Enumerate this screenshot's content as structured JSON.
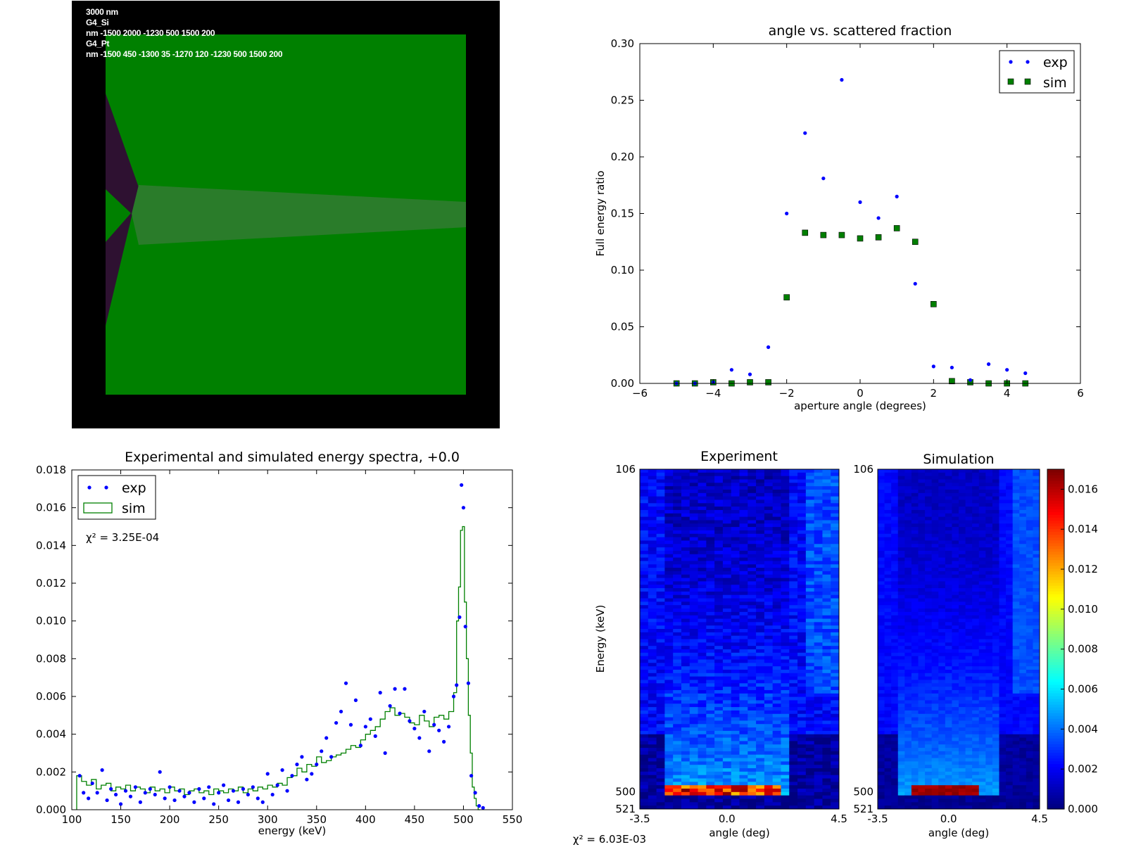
{
  "geometry_panel": {
    "lines": [
      "3000 nm",
      "G4_Si",
      "nm -1500 2000 -1230 500 1500 200",
      "G4_Pt",
      "nm -1500 450 -1300 35 -1270 120 -1230 500 1500 200"
    ],
    "colors": {
      "background": "#000000",
      "silicon": "#008000",
      "platinum": "#2e1131",
      "beam": "#2a7c2a"
    }
  },
  "chart_data": [
    {
      "type": "scatter",
      "title": "angle vs. scattered fraction",
      "xlabel": "aperture angle (degrees)",
      "ylabel": "Full energy ratio",
      "xlim": [
        -6,
        6
      ],
      "ylim": [
        0,
        0.3
      ],
      "xticks": [
        "−6",
        "−4",
        "−2",
        "0",
        "2",
        "4",
        "6"
      ],
      "yticks": [
        "0.00",
        "0.05",
        "0.10",
        "0.15",
        "0.20",
        "0.25",
        "0.30"
      ],
      "legend": "top-right",
      "series": [
        {
          "name": "exp",
          "marker": "dot",
          "color": "#0000ff",
          "x": [
            -5.0,
            -4.5,
            -4.0,
            -3.5,
            -3.0,
            -2.5,
            -2.0,
            -1.5,
            -1.0,
            -0.5,
            0.0,
            0.5,
            1.0,
            1.5,
            2.0,
            2.5,
            3.0,
            3.5,
            4.0,
            4.5
          ],
          "y": [
            0.0,
            0.0,
            0.001,
            0.012,
            0.008,
            0.032,
            0.15,
            0.221,
            0.181,
            0.268,
            0.16,
            0.146,
            0.165,
            0.088,
            0.015,
            0.014,
            0.003,
            0.017,
            0.012,
            0.009
          ]
        },
        {
          "name": "sim",
          "marker": "square",
          "color": "#007f00",
          "x": [
            -5.0,
            -4.5,
            -4.0,
            -3.5,
            -3.0,
            -2.5,
            -2.0,
            -1.5,
            -1.0,
            -0.5,
            0.0,
            0.5,
            1.0,
            1.5,
            2.0,
            2.5,
            3.0,
            3.5,
            4.0,
            4.5
          ],
          "y": [
            0.0,
            0.0,
            0.001,
            0.0,
            0.001,
            0.001,
            0.076,
            0.133,
            0.131,
            0.131,
            0.128,
            0.129,
            0.137,
            0.125,
            0.07,
            0.002,
            0.001,
            0.0,
            0.0,
            0.0
          ]
        }
      ]
    },
    {
      "type": "scatter",
      "title": "Experimental and simulated energy spectra, +0.0",
      "xlabel": "energy (keV)",
      "ylabel": "",
      "xlim": [
        100,
        550
      ],
      "ylim": [
        0,
        0.018
      ],
      "xticks": [
        "100",
        "150",
        "200",
        "250",
        "300",
        "350",
        "400",
        "450",
        "500",
        "550"
      ],
      "yticks": [
        "0.000",
        "0.002",
        "0.004",
        "0.006",
        "0.008",
        "0.010",
        "0.012",
        "0.014",
        "0.016",
        "0.018"
      ],
      "legend": "top-left",
      "annotation": "χ² = 3.25E-04",
      "series": [
        {
          "name": "exp",
          "marker": "dot",
          "color": "#0000ff",
          "x": [
            108,
            112,
            117,
            121,
            126,
            131,
            136,
            140,
            145,
            150,
            155,
            160,
            165,
            170,
            175,
            180,
            185,
            190,
            195,
            200,
            205,
            210,
            215,
            220,
            225,
            230,
            235,
            240,
            245,
            250,
            255,
            260,
            265,
            270,
            275,
            280,
            285,
            290,
            295,
            300,
            305,
            310,
            315,
            320,
            325,
            330,
            335,
            340,
            345,
            350,
            355,
            360,
            365,
            370,
            375,
            380,
            385,
            390,
            395,
            400,
            405,
            410,
            415,
            420,
            425,
            430,
            435,
            440,
            445,
            450,
            455,
            460,
            465,
            470,
            475,
            480,
            485,
            490,
            493,
            496,
            498,
            500,
            502,
            505,
            508,
            512,
            516,
            520
          ],
          "y": [
            0.0018,
            0.0009,
            0.0006,
            0.0014,
            0.0009,
            0.0021,
            0.0005,
            0.0011,
            0.0008,
            0.0003,
            0.001,
            0.0007,
            0.0012,
            0.0004,
            0.0009,
            0.0011,
            0.0008,
            0.002,
            0.0006,
            0.0012,
            0.0005,
            0.001,
            0.0007,
            0.0009,
            0.0004,
            0.0011,
            0.0006,
            0.0012,
            0.0003,
            0.0009,
            0.0013,
            0.0005,
            0.001,
            0.0004,
            0.0011,
            0.0008,
            0.0012,
            0.0006,
            0.0004,
            0.0019,
            0.0008,
            0.0013,
            0.0021,
            0.001,
            0.0018,
            0.0024,
            0.0028,
            0.0016,
            0.0019,
            0.0024,
            0.0031,
            0.0038,
            0.0028,
            0.0046,
            0.0052,
            0.0067,
            0.0045,
            0.0058,
            0.0034,
            0.0044,
            0.0048,
            0.0039,
            0.0062,
            0.003,
            0.0055,
            0.0064,
            0.0051,
            0.0064,
            0.0047,
            0.0043,
            0.0038,
            0.0052,
            0.0031,
            0.0045,
            0.0042,
            0.0036,
            0.0044,
            0.006,
            0.0066,
            0.0102,
            0.0172,
            0.016,
            0.0097,
            0.0067,
            0.0018,
            0.0009,
            0.0002,
            0.0001
          ]
        },
        {
          "name": "sim",
          "marker": "step",
          "color": "#008000",
          "x": [
            105,
            110,
            115,
            120,
            125,
            130,
            135,
            140,
            145,
            150,
            155,
            160,
            165,
            170,
            175,
            180,
            185,
            190,
            195,
            200,
            205,
            210,
            215,
            220,
            225,
            230,
            235,
            240,
            245,
            250,
            255,
            260,
            265,
            270,
            275,
            280,
            285,
            290,
            295,
            300,
            305,
            310,
            315,
            320,
            325,
            330,
            335,
            340,
            345,
            350,
            355,
            360,
            365,
            370,
            375,
            380,
            385,
            390,
            395,
            400,
            405,
            410,
            415,
            420,
            425,
            430,
            435,
            440,
            445,
            450,
            455,
            460,
            465,
            470,
            475,
            480,
            485,
            490,
            493,
            495,
            497,
            499,
            501,
            503,
            505,
            507,
            509,
            511,
            513,
            515
          ],
          "y": [
            0.0018,
            0.0015,
            0.0013,
            0.0016,
            0.0011,
            0.0013,
            0.0014,
            0.001,
            0.0012,
            0.0011,
            0.0013,
            0.001,
            0.0012,
            0.0011,
            0.0009,
            0.0012,
            0.001,
            0.0011,
            0.0009,
            0.0012,
            0.001,
            0.0011,
            0.0008,
            0.001,
            0.0011,
            0.0009,
            0.001,
            0.0008,
            0.0011,
            0.001,
            0.0009,
            0.0011,
            0.001,
            0.0012,
            0.0009,
            0.0011,
            0.001,
            0.0012,
            0.0011,
            0.0013,
            0.0012,
            0.0014,
            0.0013,
            0.0017,
            0.0018,
            0.0022,
            0.002,
            0.0024,
            0.0023,
            0.0028,
            0.0025,
            0.0026,
            0.0028,
            0.0029,
            0.003,
            0.0032,
            0.0034,
            0.0033,
            0.0037,
            0.004,
            0.0042,
            0.0044,
            0.0048,
            0.0052,
            0.0054,
            0.005,
            0.0051,
            0.0049,
            0.0046,
            0.0045,
            0.005,
            0.0047,
            0.0044,
            0.0049,
            0.005,
            0.0048,
            0.0052,
            0.0062,
            0.01,
            0.0118,
            0.0148,
            0.015,
            0.011,
            0.008,
            0.005,
            0.003,
            0.0012,
            0.0006,
            0.0002,
            0.0
          ]
        }
      ]
    },
    {
      "type": "heatmap",
      "title": "Experiment",
      "xlabel": "angle (deg)",
      "ylabel": "Energy (keV)",
      "xticks": [
        "-3.5",
        "0.0",
        "4.5"
      ],
      "yticks": [
        "106",
        "500",
        "521"
      ],
      "xlim": [
        -3.5,
        4.5
      ],
      "ylim_energy": [
        106,
        521
      ],
      "peak_band_energy": 500,
      "peak_band_angle_range": [
        -2.5,
        2.2
      ]
    },
    {
      "type": "heatmap",
      "title": "Simulation",
      "xlabel": "angle (deg)",
      "ylabel": "",
      "xticks": [
        "-3.5",
        "0.0",
        "4.5"
      ],
      "yticks": [
        "106",
        "500",
        "521"
      ],
      "xlim": [
        -3.5,
        4.5
      ],
      "ylim_energy": [
        106,
        521
      ],
      "peak_band_energy": 500,
      "peak_band_angle_range": [
        -1.7,
        1.5
      ],
      "colorbar": {
        "range": [
          0,
          0.017
        ],
        "ticks": [
          "0.000",
          "0.002",
          "0.004",
          "0.006",
          "0.008",
          "0.010",
          "0.012",
          "0.014",
          "0.016"
        ],
        "colormap": "jet"
      }
    }
  ],
  "footer": {
    "chi2_total": "χ² = 6.03E-03"
  }
}
